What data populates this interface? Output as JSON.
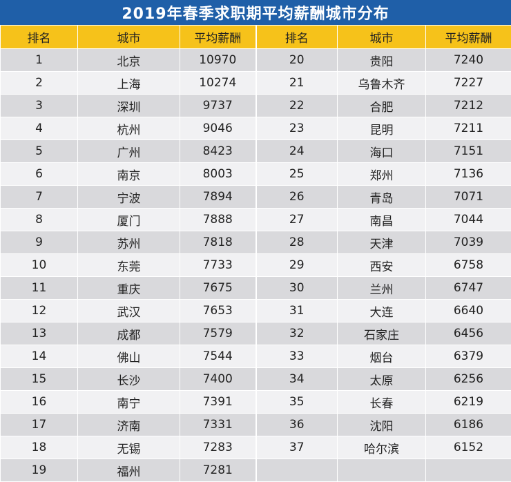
{
  "title": "2019年春季求职期平均薪酬城市分布",
  "headers": [
    "排名",
    "城市",
    "平均薪酬",
    "排名",
    "城市",
    "平均薪酬"
  ],
  "rows": [
    {
      "left": {
        "rank": "1",
        "city": "北京",
        "salary": "10970"
      },
      "right": {
        "rank": "20",
        "city": "贵阳",
        "salary": "7240"
      }
    },
    {
      "left": {
        "rank": "2",
        "city": "上海",
        "salary": "10274"
      },
      "right": {
        "rank": "21",
        "city": "乌鲁木齐",
        "salary": "7227"
      }
    },
    {
      "left": {
        "rank": "3",
        "city": "深圳",
        "salary": "9737"
      },
      "right": {
        "rank": "22",
        "city": "合肥",
        "salary": "7212"
      }
    },
    {
      "left": {
        "rank": "4",
        "city": "杭州",
        "salary": "9046"
      },
      "right": {
        "rank": "23",
        "city": "昆明",
        "salary": "7211"
      }
    },
    {
      "left": {
        "rank": "5",
        "city": "广州",
        "salary": "8423"
      },
      "right": {
        "rank": "24",
        "city": "海口",
        "salary": "7151"
      }
    },
    {
      "left": {
        "rank": "6",
        "city": "南京",
        "salary": "8003"
      },
      "right": {
        "rank": "25",
        "city": "郑州",
        "salary": "7136"
      }
    },
    {
      "left": {
        "rank": "7",
        "city": "宁波",
        "salary": "7894"
      },
      "right": {
        "rank": "26",
        "city": "青岛",
        "salary": "7071"
      }
    },
    {
      "left": {
        "rank": "8",
        "city": "厦门",
        "salary": "7888"
      },
      "right": {
        "rank": "27",
        "city": "南昌",
        "salary": "7044"
      }
    },
    {
      "left": {
        "rank": "9",
        "city": "苏州",
        "salary": "7818"
      },
      "right": {
        "rank": "28",
        "city": "天津",
        "salary": "7039"
      }
    },
    {
      "left": {
        "rank": "10",
        "city": "东莞",
        "salary": "7733"
      },
      "right": {
        "rank": "29",
        "city": "西安",
        "salary": "6758"
      }
    },
    {
      "left": {
        "rank": "11",
        "city": "重庆",
        "salary": "7675"
      },
      "right": {
        "rank": "30",
        "city": "兰州",
        "salary": "6747"
      }
    },
    {
      "left": {
        "rank": "12",
        "city": "武汉",
        "salary": "7653"
      },
      "right": {
        "rank": "31",
        "city": "大连",
        "salary": "6640"
      }
    },
    {
      "left": {
        "rank": "13",
        "city": "成都",
        "salary": "7579"
      },
      "right": {
        "rank": "32",
        "city": "石家庄",
        "salary": "6456"
      }
    },
    {
      "left": {
        "rank": "14",
        "city": "佛山",
        "salary": "7544"
      },
      "right": {
        "rank": "33",
        "city": "烟台",
        "salary": "6379"
      }
    },
    {
      "left": {
        "rank": "15",
        "city": "长沙",
        "salary": "7400"
      },
      "right": {
        "rank": "34",
        "city": "太原",
        "salary": "6256"
      }
    },
    {
      "left": {
        "rank": "16",
        "city": "南宁",
        "salary": "7391"
      },
      "right": {
        "rank": "35",
        "city": "长春",
        "salary": "6219"
      }
    },
    {
      "left": {
        "rank": "17",
        "city": "济南",
        "salary": "7331"
      },
      "right": {
        "rank": "36",
        "city": "沈阳",
        "salary": "6186"
      }
    },
    {
      "left": {
        "rank": "18",
        "city": "无锡",
        "salary": "7283"
      },
      "right": {
        "rank": "37",
        "city": "哈尔滨",
        "salary": "6152"
      }
    },
    {
      "left": {
        "rank": "19",
        "city": "福州",
        "salary": "7281"
      },
      "right": {
        "rank": "",
        "city": "",
        "salary": ""
      }
    }
  ]
}
